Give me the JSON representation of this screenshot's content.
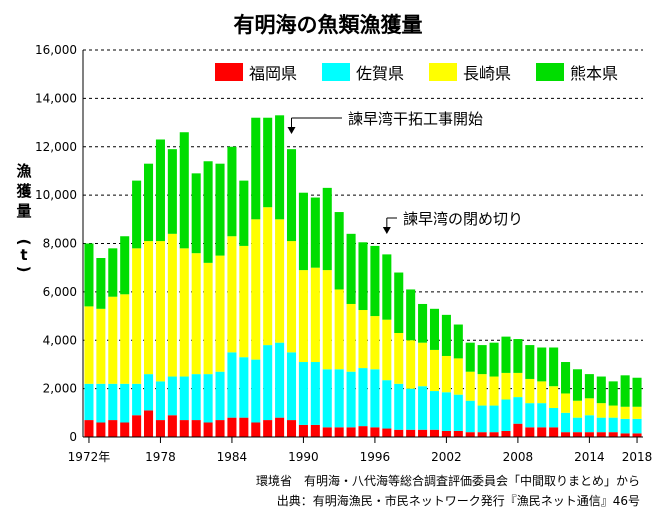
{
  "chart_data": {
    "type": "bar",
    "stacked": true,
    "title": "有明海の魚類漁獲量",
    "ylabel_chars": [
      "漁",
      "獲",
      "量",
      "(",
      "t",
      ")"
    ],
    "ylim": [
      0,
      16000
    ],
    "yticks": [
      "0",
      "2,000",
      "4,000",
      "6,000",
      "8,000",
      "10,000",
      "12,000",
      "14,000",
      "16,000"
    ],
    "ytick_values": [
      0,
      2000,
      4000,
      6000,
      8000,
      10000,
      12000,
      14000,
      16000
    ],
    "x": [
      1972,
      1973,
      1974,
      1975,
      1976,
      1977,
      1978,
      1979,
      1980,
      1981,
      1982,
      1983,
      1984,
      1985,
      1986,
      1987,
      1988,
      1989,
      1990,
      1991,
      1992,
      1993,
      1994,
      1995,
      1996,
      1997,
      1998,
      1999,
      2000,
      2001,
      2002,
      2003,
      2004,
      2005,
      2006,
      2007,
      2008,
      2009,
      2010,
      2011,
      2012,
      2013,
      2014,
      2015,
      2016,
      2017,
      2018
    ],
    "x_tick_labels": [
      {
        "year": 1972,
        "label": "1972年"
      },
      {
        "year": 1978,
        "label": "1978"
      },
      {
        "year": 1984,
        "label": "1984"
      },
      {
        "year": 1990,
        "label": "1990"
      },
      {
        "year": 1996,
        "label": "1996"
      },
      {
        "year": 2002,
        "label": "2002"
      },
      {
        "year": 2008,
        "label": "2008"
      },
      {
        "year": 2014,
        "label": "2014"
      },
      {
        "year": 2018,
        "label": "2018"
      }
    ],
    "series": [
      {
        "name": "福岡県",
        "color": "#ff0000",
        "values": [
          700,
          600,
          700,
          600,
          900,
          1100,
          700,
          900,
          700,
          700,
          600,
          700,
          800,
          800,
          600,
          700,
          800,
          700,
          500,
          500,
          400,
          400,
          400,
          450,
          400,
          350,
          300,
          300,
          300,
          300,
          250,
          250,
          200,
          200,
          200,
          250,
          550,
          400,
          400,
          400,
          200,
          200,
          200,
          200,
          200,
          150,
          150
        ]
      },
      {
        "name": "佐賀県",
        "color": "#00ffff",
        "values": [
          1500,
          1600,
          1500,
          1600,
          1300,
          1500,
          1600,
          1600,
          1800,
          1900,
          2000,
          2000,
          2700,
          2500,
          2600,
          3100,
          3100,
          2800,
          2600,
          2600,
          2400,
          2400,
          2300,
          2400,
          2400,
          2000,
          1900,
          1700,
          1800,
          1600,
          1600,
          1500,
          1300,
          1100,
          1100,
          1300,
          1100,
          1000,
          1000,
          800,
          800,
          600,
          700,
          600,
          600,
          600,
          600
        ]
      },
      {
        "name": "長崎県",
        "color": "#ffff00",
        "values": [
          3200,
          3100,
          3600,
          3700,
          5600,
          5500,
          5800,
          5900,
          5300,
          5000,
          4600,
          4800,
          4800,
          4600,
          5800,
          5700,
          5100,
          4600,
          3800,
          3900,
          4100,
          3300,
          2800,
          2400,
          2200,
          2500,
          2100,
          2000,
          1800,
          1700,
          1500,
          1500,
          1200,
          1300,
          1200,
          1100,
          1000,
          1000,
          900,
          900,
          800,
          700,
          700,
          600,
          500,
          500,
          500
        ]
      },
      {
        "name": "熊本県",
        "color": "#00dd00",
        "values": [
          2600,
          2100,
          2000,
          2400,
          2800,
          3200,
          4200,
          3500,
          4800,
          3300,
          4200,
          3800,
          3700,
          2700,
          4200,
          3700,
          4300,
          3800,
          3200,
          2900,
          3400,
          3200,
          2900,
          2800,
          2900,
          2700,
          2500,
          2100,
          1600,
          1700,
          1700,
          1400,
          1200,
          1200,
          1400,
          1500,
          1400,
          1400,
          1400,
          1600,
          1300,
          1300,
          1000,
          1100,
          1000,
          1300,
          1200
        ]
      }
    ],
    "annotations": [
      {
        "text": "諫早湾干拓工事開始",
        "year": 1989
      },
      {
        "text": "諫早湾の閉め切り",
        "year": 1997
      }
    ],
    "grid": "dashed horizontal at each y tick",
    "legend": "top-right"
  },
  "footer": {
    "line1": "環境省　有明海・八代海等総合調査評価委員会「中間取りまとめ」から",
    "line2": "出典：有明海漁民・市民ネットワーク発行『漁民ネット通信』46号"
  }
}
